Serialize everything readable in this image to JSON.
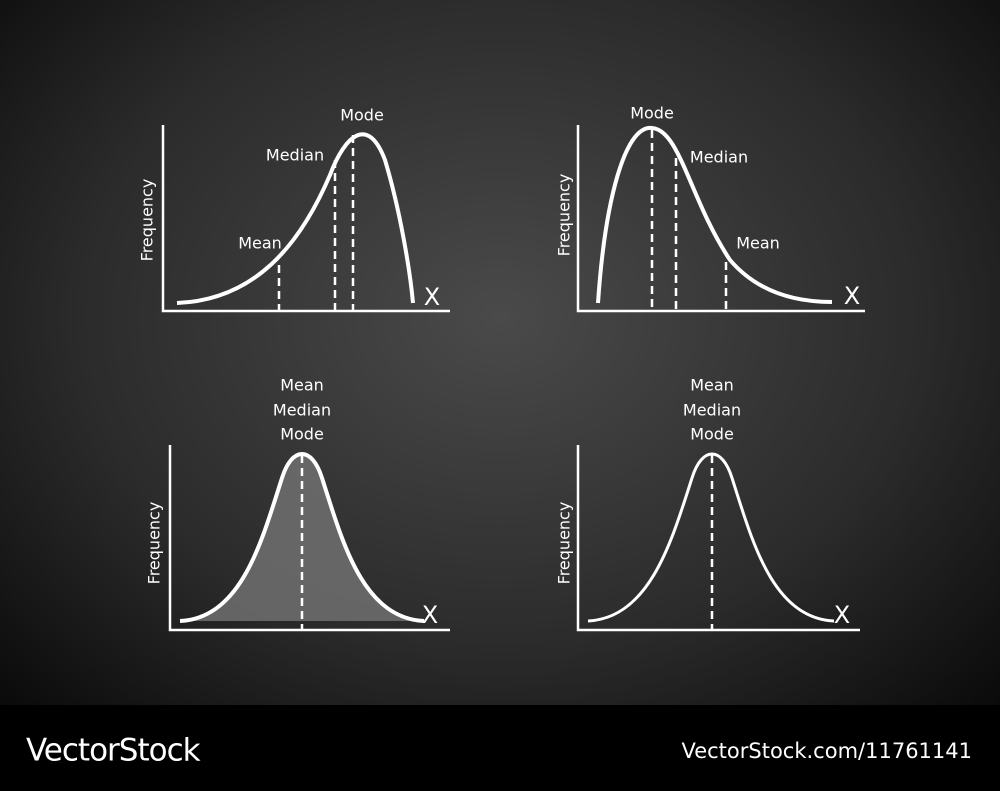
{
  "panels": [
    {
      "y_label": "Frequency",
      "x_label": "X",
      "markers": [
        "Mean",
        "Median",
        "Mode"
      ]
    },
    {
      "y_label": "Frequency",
      "x_label": "X",
      "markers": [
        "Mode",
        "Median",
        "Mean"
      ]
    },
    {
      "y_label": "Frequency",
      "x_label": "X",
      "markers": [
        "Mean",
        "Median",
        "Mode"
      ]
    },
    {
      "y_label": "Frequency",
      "x_label": "X",
      "markers": [
        "Mean",
        "Median",
        "Mode"
      ]
    }
  ],
  "footer": {
    "brand": "VectorStock",
    "url": "VectorStock.com/11761141"
  }
}
